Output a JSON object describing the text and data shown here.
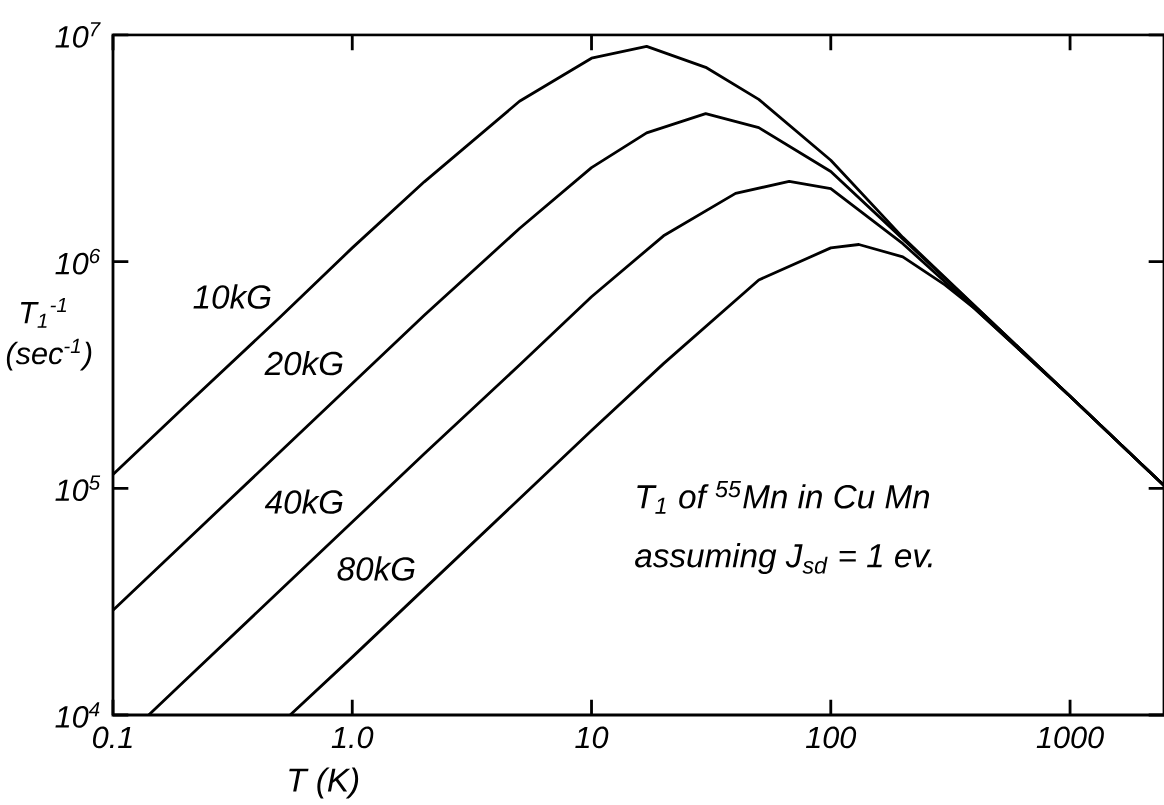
{
  "chart_data": {
    "type": "line",
    "xlabel": "T (K)",
    "ylabel": "T$_{1}$$^{-1}$ (sec$^{-1}$)",
    "log": "xy",
    "xlim": [
      0.1,
      2470
    ],
    "ylim": [
      10000,
      10000000
    ],
    "xticks": [
      0.1,
      {
        "value": 1,
        "label": "1.0"
      },
      10,
      100,
      1000
    ],
    "yticks": [
      {
        "value": 10000,
        "label": "10$^{4}$"
      },
      {
        "value": 100000,
        "label": "10$^{5}$"
      },
      {
        "value": 1000000,
        "label": "10$^{6}$"
      },
      {
        "value": 10000000,
        "label": "10$^{7}$"
      }
    ],
    "line_style": "solid",
    "series": [
      {
        "name": "10kG",
        "color": "#000000",
        "x": [
          0.1,
          0.2,
          0.5,
          1,
          2,
          5,
          10,
          17,
          30,
          50,
          100,
          200,
          500,
          1000,
          2000,
          2470
        ],
        "values": [
          115000,
          230000,
          570000,
          1150000,
          2250000,
          5100000,
          7900000,
          8900000,
          7200000,
          5200000,
          2800000,
          1280000,
          510000,
          255000,
          127000,
          103000
        ]
      },
      {
        "name": "20kG",
        "color": "#000000",
        "x": [
          0.1,
          0.2,
          0.5,
          1,
          2,
          5,
          10,
          17,
          30,
          50,
          100,
          200,
          500,
          1000,
          2000,
          2470
        ],
        "values": [
          29000,
          58000,
          145000,
          290000,
          580000,
          1400000,
          2600000,
          3700000,
          4500000,
          3900000,
          2500000,
          1260000,
          510000,
          255000,
          127000,
          103000
        ]
      },
      {
        "name": "40kG",
        "color": "#000000",
        "x": [
          0.141,
          0.2,
          0.5,
          1,
          2,
          5,
          10,
          20,
          40,
          67,
          100,
          200,
          400,
          1000,
          2000,
          2470
        ],
        "values": [
          10000,
          14200,
          35500,
          71000,
          142000,
          350000,
          700000,
          1300000,
          2000000,
          2260000,
          2100000,
          1200000,
          620000,
          255000,
          127000,
          103000
        ]
      },
      {
        "name": "80kG",
        "color": "#000000",
        "x": [
          0.55,
          1,
          2,
          5,
          10,
          20,
          50,
          100,
          131,
          200,
          300,
          400,
          1000,
          2000,
          2470
        ],
        "values": [
          10000,
          18000,
          36000,
          90000,
          180000,
          355000,
          830000,
          1150000,
          1190000,
          1050000,
          790000,
          620000,
          255000,
          127000,
          103000
        ]
      }
    ],
    "annotations": [
      "T$_{1}$ of $^{55}$Mn in Cu Mn",
      "assuming J$_{sd}$ = 1 ev."
    ]
  }
}
